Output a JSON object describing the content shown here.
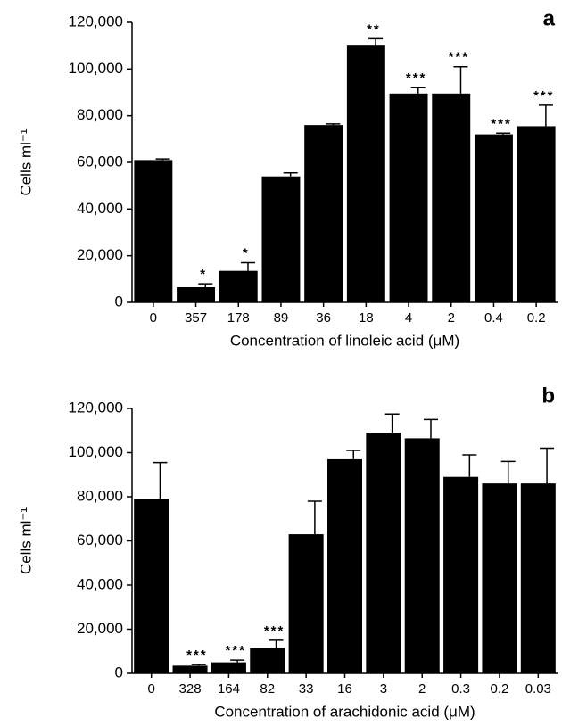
{
  "chart_data": [
    {
      "type": "bar",
      "panel_label": "a",
      "x_label": "Concentration of linoleic acid (μM)",
      "y_label": "Cells ml⁻¹",
      "categories": [
        "0",
        "357",
        "178",
        "89",
        "36",
        "18",
        "4",
        "2",
        "0.4",
        "0.2"
      ],
      "values": [
        61000,
        6500,
        13500,
        54000,
        76000,
        110000,
        89500,
        89500,
        72000,
        75500
      ],
      "errors": [
        500,
        1500,
        3500,
        1500,
        500,
        3000,
        2500,
        11500,
        500,
        9000
      ],
      "annotations": [
        null,
        "*",
        "*",
        null,
        null,
        "**",
        "***",
        "***",
        "***",
        "***"
      ],
      "color": "#000000",
      "ylim": [
        0,
        120000
      ],
      "yticks": [
        0,
        {
          "value": 20000,
          "label": "20,000"
        },
        {
          "value": 40000,
          "label": "40,000"
        },
        {
          "value": 60000,
          "label": "60,000"
        },
        {
          "value": 80000,
          "label": "80,000"
        },
        {
          "value": 100000,
          "label": "100,000"
        },
        {
          "value": 120000,
          "label": "120,000"
        }
      ]
    },
    {
      "type": "bar",
      "panel_label": "b",
      "x_label": "Concentration of arachidonic acid (μM)",
      "y_label": "Cells ml⁻¹",
      "categories": [
        "0",
        "328",
        "164",
        "82",
        "33",
        "16",
        "3",
        "2",
        "0.3",
        "0.2",
        "0.03"
      ],
      "values": [
        79000,
        3500,
        5000,
        11500,
        63000,
        97000,
        109000,
        106500,
        89000,
        86000,
        86000
      ],
      "errors": [
        16500,
        500,
        1000,
        3500,
        15000,
        4000,
        8500,
        8500,
        10000,
        10000,
        16000
      ],
      "annotations": [
        null,
        "***",
        "***",
        "***",
        null,
        null,
        null,
        null,
        null,
        null,
        null
      ],
      "color": "#000000",
      "ylim": [
        0,
        120000
      ],
      "yticks": [
        0,
        {
          "value": 20000,
          "label": "20,000"
        },
        {
          "value": 40000,
          "label": "40,000"
        },
        {
          "value": 60000,
          "label": "60,000"
        },
        {
          "value": 80000,
          "label": "80,000"
        },
        {
          "value": 100000,
          "label": "100,000"
        },
        {
          "value": 120000,
          "label": "120,000"
        }
      ]
    }
  ]
}
